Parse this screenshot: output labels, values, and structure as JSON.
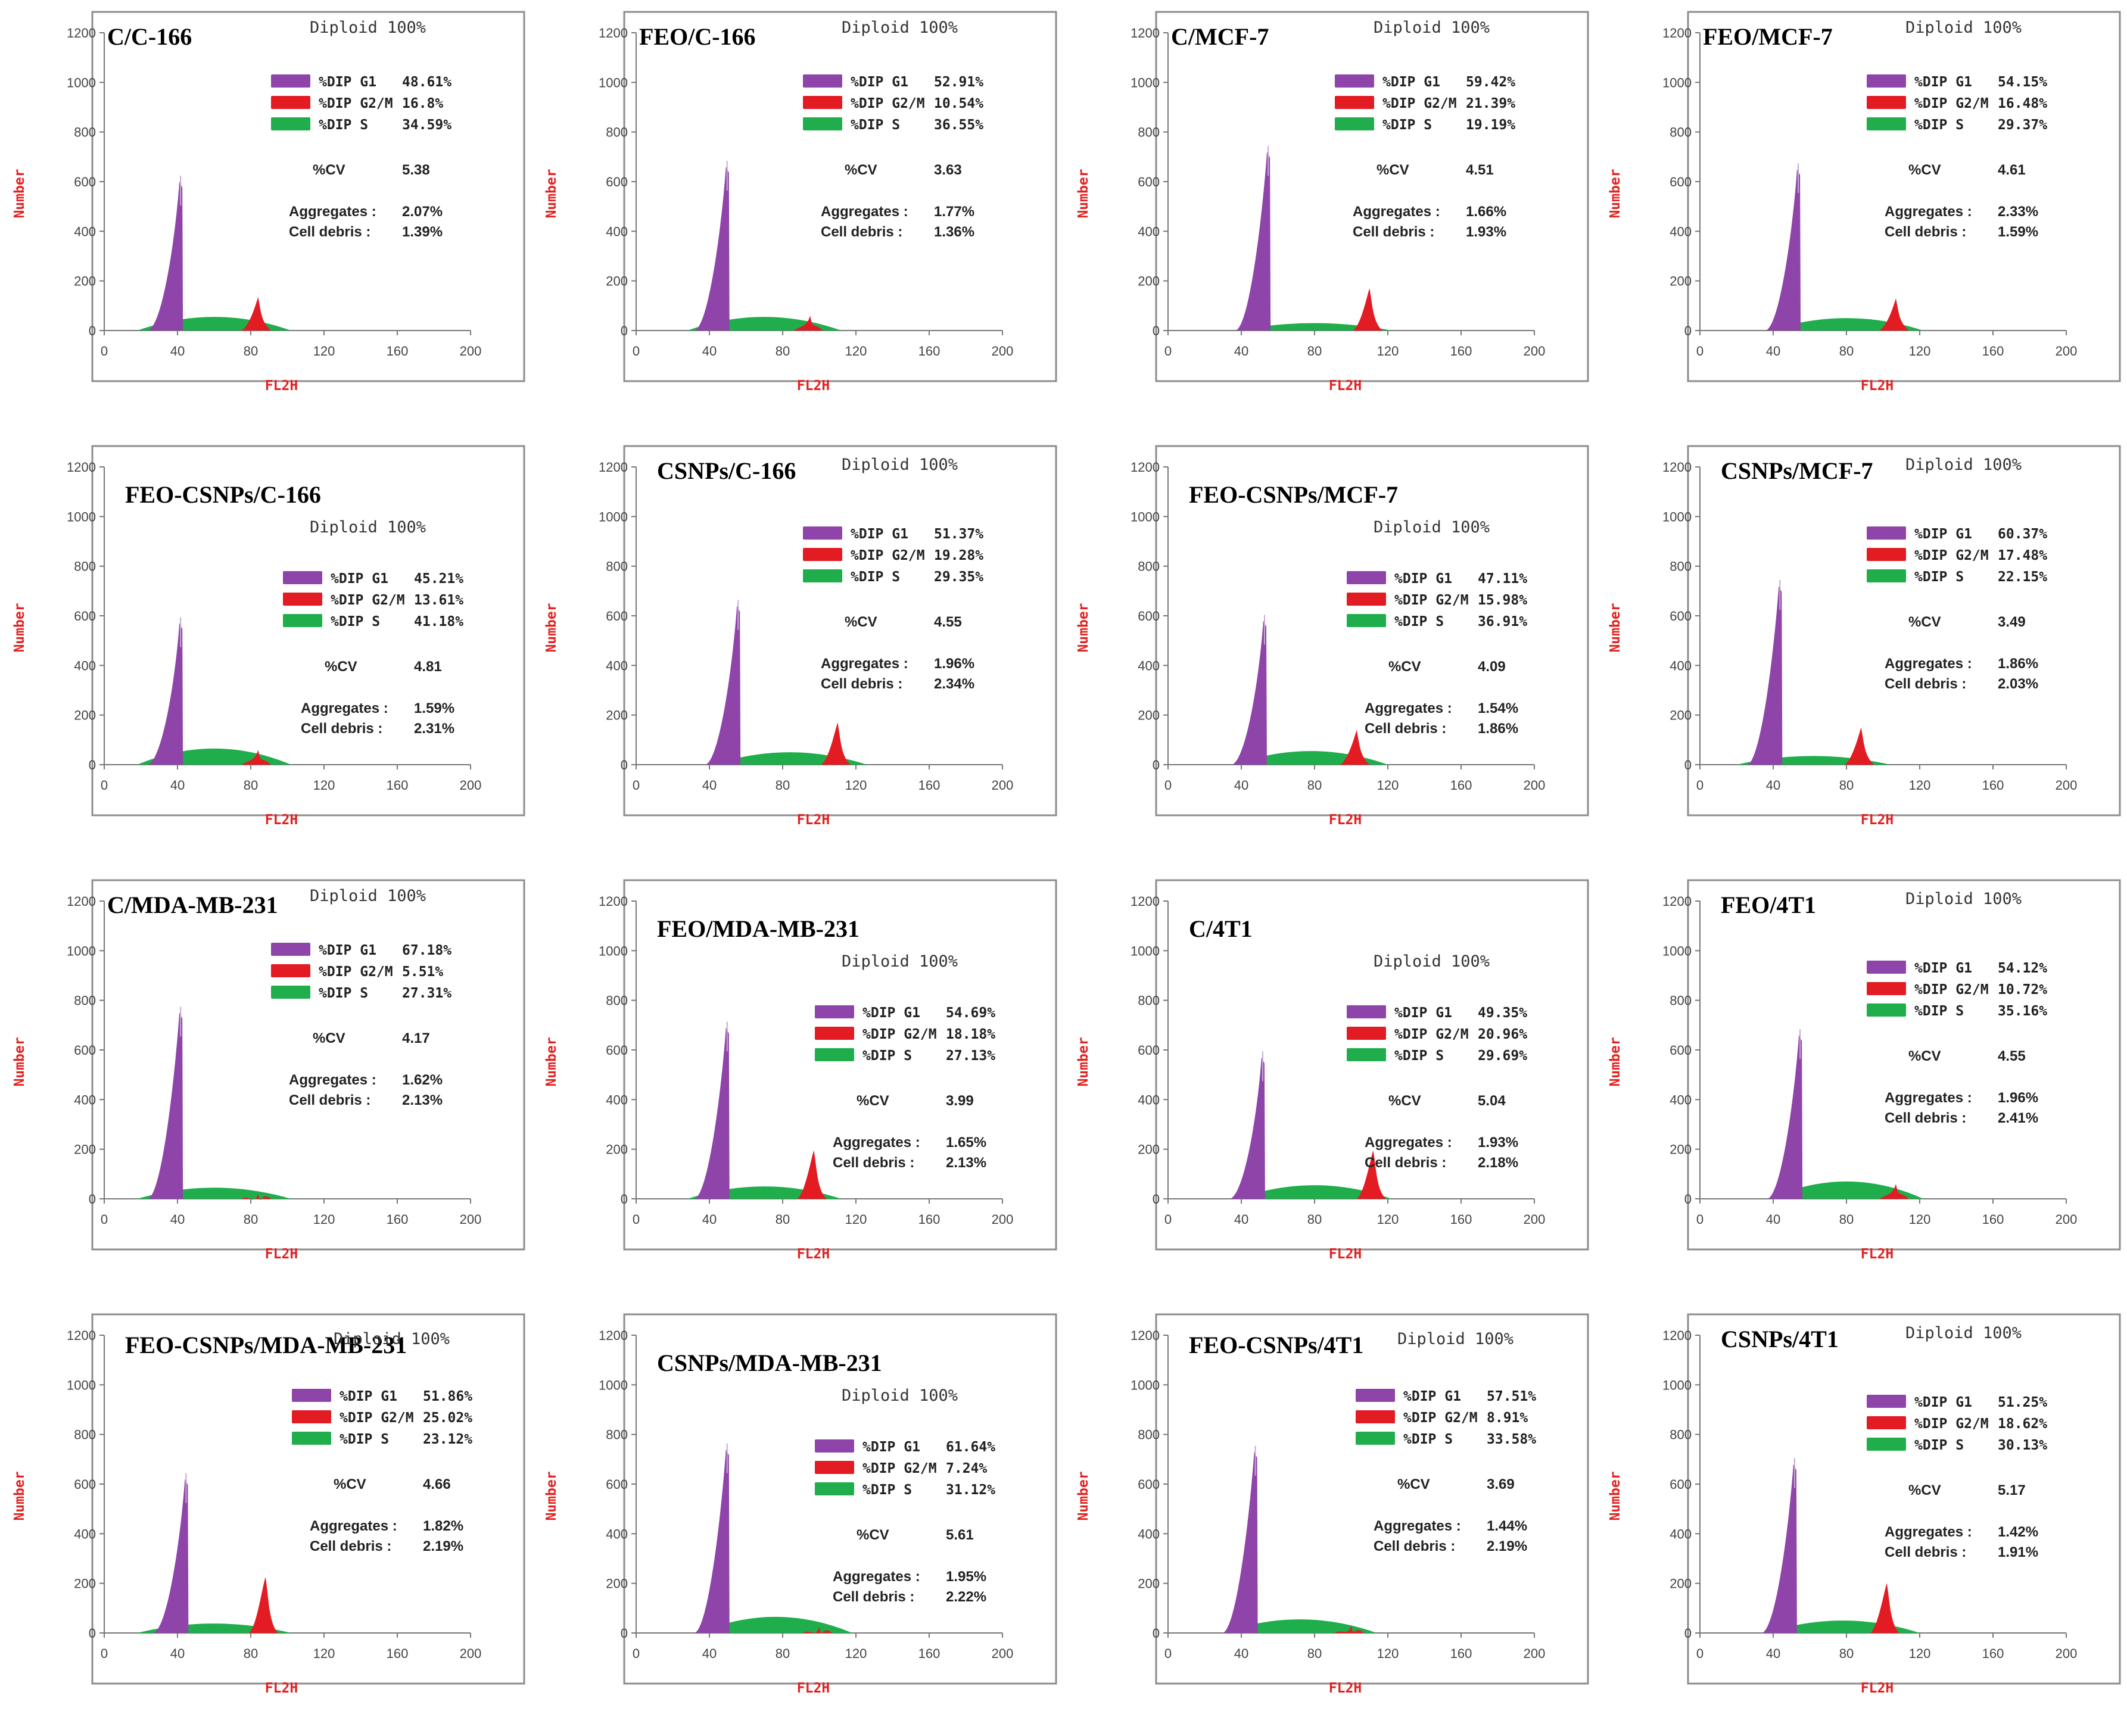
{
  "colors": {
    "g1": "#8e44a8",
    "g2m": "#e31b23",
    "s": "#1fae4b",
    "axis_label": "#e32222"
  },
  "chart_data": [
    {
      "type": "histogram",
      "title": "C/C-166",
      "diploid": "Diploid 100%",
      "xlabel": "FL2H",
      "ylabel": "Number",
      "xlim": [
        0,
        200
      ],
      "ylim": [
        0,
        1200
      ],
      "xticks": [
        "0",
        "40",
        "80",
        "120",
        "160",
        "200"
      ],
      "yticks": [
        "0",
        "200",
        "400",
        "600",
        "800",
        "1000",
        "1200"
      ],
      "legend": [
        {
          "label": "%DIP G1",
          "value": "48.61%"
        },
        {
          "label": "%DIP G2/M",
          "value": "16.8%"
        },
        {
          "label": "%DIP S",
          "value": "34.59%"
        }
      ],
      "cv_label": "%CV",
      "cv": "5.38",
      "aggregates_label": "Aggregates :",
      "aggregates": "2.07%",
      "debris_label": "Cell debris  :",
      "debris": "1.39%",
      "peaks": {
        "g1_pos": 42,
        "g1_height": 600,
        "g2_pos": 84,
        "g2_height": 135,
        "s_center": 60,
        "s_height": 55
      }
    },
    {
      "type": "histogram",
      "title": "FEO/C-166",
      "diploid": "Diploid 100%",
      "xlabel": "FL2H",
      "ylabel": "Number",
      "xlim": [
        0,
        200
      ],
      "ylim": [
        0,
        1200
      ],
      "xticks": [
        "0",
        "40",
        "80",
        "120",
        "160",
        "200"
      ],
      "yticks": [
        "0",
        "200",
        "400",
        "600",
        "800",
        "1000",
        "1200"
      ],
      "legend": [
        {
          "label": "%DIP G1",
          "value": "52.91%"
        },
        {
          "label": "%DIP G2/M",
          "value": "10.54%"
        },
        {
          "label": "%DIP S",
          "value": "36.55%"
        }
      ],
      "cv_label": "%CV",
      "cv": "3.63",
      "aggregates_label": "Aggregates :",
      "aggregates": "1.77%",
      "debris_label": "Cell debris  :",
      "debris": "1.36%",
      "peaks": {
        "g1_pos": 50,
        "g1_height": 660,
        "g2_pos": 95,
        "g2_height": 60,
        "s_center": 70,
        "s_height": 55
      }
    },
    {
      "type": "histogram",
      "title": "C/MCF-7",
      "diploid": "Diploid 100%",
      "xlabel": "FL2H",
      "ylabel": "Number",
      "xlim": [
        0,
        200
      ],
      "ylim": [
        0,
        1200
      ],
      "xticks": [
        "0",
        "40",
        "80",
        "120",
        "160",
        "200"
      ],
      "yticks": [
        "0",
        "200",
        "400",
        "600",
        "800",
        "1000",
        "1200"
      ],
      "legend": [
        {
          "label": "%DIP G1",
          "value": "59.42%"
        },
        {
          "label": "%DIP G2/M",
          "value": "21.39%"
        },
        {
          "label": "%DIP S",
          "value": "19.19%"
        }
      ],
      "cv_label": "%CV",
      "cv": "4.51",
      "aggregates_label": "Aggregates :",
      "aggregates": "1.66%",
      "debris_label": "Cell debris  :",
      "debris": "1.93%",
      "peaks": {
        "g1_pos": 55,
        "g1_height": 720,
        "g2_pos": 110,
        "g2_height": 170,
        "s_center": 80,
        "s_height": 30
      }
    },
    {
      "type": "histogram",
      "title": "FEO/MCF-7",
      "diploid": "Diploid 100%",
      "xlabel": "FL2H",
      "ylabel": "Number",
      "xlim": [
        0,
        200
      ],
      "ylim": [
        0,
        1200
      ],
      "xticks": [
        "0",
        "40",
        "80",
        "120",
        "160",
        "200"
      ],
      "yticks": [
        "0",
        "200",
        "400",
        "600",
        "800",
        "1000",
        "1200"
      ],
      "legend": [
        {
          "label": "%DIP G1",
          "value": "54.15%"
        },
        {
          "label": "%DIP G2/M",
          "value": "16.48%"
        },
        {
          "label": "%DIP S",
          "value": "29.37%"
        }
      ],
      "cv_label": "%CV",
      "cv": "4.61",
      "aggregates_label": "Aggregates :",
      "aggregates": "2.33%",
      "debris_label": "Cell debris  :",
      "debris": "1.59%",
      "peaks": {
        "g1_pos": 54,
        "g1_height": 650,
        "g2_pos": 107,
        "g2_height": 130,
        "s_center": 80,
        "s_height": 50
      }
    },
    {
      "type": "histogram",
      "title": "FEO-CSNPs/C-166",
      "diploid": "Diploid 100%",
      "xlabel": "FL2H",
      "ylabel": "Number",
      "xlim": [
        0,
        200
      ],
      "ylim": [
        0,
        1200
      ],
      "xticks": [
        "0",
        "40",
        "80",
        "120",
        "160",
        "200"
      ],
      "yticks": [
        "0",
        "200",
        "400",
        "600",
        "800",
        "1000",
        "1200"
      ],
      "legend": [
        {
          "label": "%DIP G1",
          "value": "45.21%"
        },
        {
          "label": "%DIP G2/M",
          "value": "13.61%"
        },
        {
          "label": "%DIP S",
          "value": "41.18%"
        }
      ],
      "cv_label": "%CV",
      "cv": "4.81",
      "aggregates_label": "Aggregates :",
      "aggregates": "1.59%",
      "debris_label": "Cell debris  :",
      "debris": "2.31%",
      "peaks": {
        "g1_pos": 42,
        "g1_height": 570,
        "g2_pos": 84,
        "g2_height": 60,
        "s_center": 60,
        "s_height": 65
      }
    },
    {
      "type": "histogram",
      "title": "CSNPs/C-166",
      "diploid": "Diploid 100%",
      "xlabel": "FL2H",
      "ylabel": "Number",
      "xlim": [
        0,
        200
      ],
      "ylim": [
        0,
        1200
      ],
      "xticks": [
        "0",
        "40",
        "80",
        "120",
        "160",
        "200"
      ],
      "yticks": [
        "0",
        "200",
        "400",
        "600",
        "800",
        "1000",
        "1200"
      ],
      "legend": [
        {
          "label": "%DIP G1",
          "value": "51.37%"
        },
        {
          "label": "%DIP G2/M",
          "value": "19.28%"
        },
        {
          "label": "%DIP S",
          "value": "29.35%"
        }
      ],
      "cv_label": "%CV",
      "cv": "4.55",
      "aggregates_label": "Aggregates :",
      "aggregates": "1.96%",
      "debris_label": "Cell debris  :",
      "debris": "2.34%",
      "peaks": {
        "g1_pos": 56,
        "g1_height": 640,
        "g2_pos": 110,
        "g2_height": 170,
        "s_center": 84,
        "s_height": 50
      }
    },
    {
      "type": "histogram",
      "title": "FEO-CSNPs/MCF-7",
      "diploid": "Diploid 100%",
      "xlabel": "FL2H",
      "ylabel": "Number",
      "xlim": [
        0,
        200
      ],
      "ylim": [
        0,
        1200
      ],
      "xticks": [
        "0",
        "40",
        "80",
        "120",
        "160",
        "200"
      ],
      "yticks": [
        "0",
        "200",
        "400",
        "600",
        "800",
        "1000",
        "1200"
      ],
      "legend": [
        {
          "label": "%DIP G1",
          "value": "47.11%"
        },
        {
          "label": "%DIP G2/M",
          "value": "15.98%"
        },
        {
          "label": "%DIP S",
          "value": "36.91%"
        }
      ],
      "cv_label": "%CV",
      "cv": "4.09",
      "aggregates_label": "Aggregates :",
      "aggregates": "1.54%",
      "debris_label": "Cell debris  :",
      "debris": "1.86%",
      "peaks": {
        "g1_pos": 53,
        "g1_height": 580,
        "g2_pos": 103,
        "g2_height": 140,
        "s_center": 78,
        "s_height": 55
      }
    },
    {
      "type": "histogram",
      "title": "CSNPs/MCF-7",
      "diploid": "Diploid 100%",
      "xlabel": "FL2H",
      "ylabel": "Number",
      "xlim": [
        0,
        200
      ],
      "ylim": [
        0,
        1200
      ],
      "xticks": [
        "0",
        "40",
        "80",
        "120",
        "160",
        "200"
      ],
      "yticks": [
        "0",
        "200",
        "400",
        "600",
        "800",
        "1000",
        "1200"
      ],
      "legend": [
        {
          "label": "%DIP G1",
          "value": "60.37%"
        },
        {
          "label": "%DIP G2/M",
          "value": "17.48%"
        },
        {
          "label": "%DIP S",
          "value": "22.15%"
        }
      ],
      "cv_label": "%CV",
      "cv": "3.49",
      "aggregates_label": "Aggregates :",
      "aggregates": "1.86%",
      "debris_label": "Cell debris  :",
      "debris": "2.03%",
      "peaks": {
        "g1_pos": 44,
        "g1_height": 720,
        "g2_pos": 88,
        "g2_height": 150,
        "s_center": 62,
        "s_height": 35
      }
    },
    {
      "type": "histogram",
      "title": "C/MDA-MB-231",
      "diploid": "Diploid 100%",
      "xlabel": "FL2H",
      "ylabel": "Number",
      "xlim": [
        0,
        200
      ],
      "ylim": [
        0,
        1200
      ],
      "xticks": [
        "0",
        "40",
        "80",
        "120",
        "160",
        "200"
      ],
      "yticks": [
        "0",
        "200",
        "400",
        "600",
        "800",
        "1000",
        "1200"
      ],
      "legend": [
        {
          "label": "%DIP G1",
          "value": "67.18%"
        },
        {
          "label": "%DIP G2/M",
          "value": "5.51%"
        },
        {
          "label": "%DIP S",
          "value": "27.31%"
        }
      ],
      "cv_label": "%CV",
      "cv": "4.17",
      "aggregates_label": "Aggregates :",
      "aggregates": "1.62%",
      "debris_label": "Cell debris  :",
      "debris": "2.13%",
      "peaks": {
        "g1_pos": 42,
        "g1_height": 750,
        "g2_pos": 84,
        "g2_height": 20,
        "s_center": 60,
        "s_height": 45
      }
    },
    {
      "type": "histogram",
      "title": "FEO/MDA-MB-231",
      "diploid": "Diploid 100%",
      "xlabel": "FL2H",
      "ylabel": "Number",
      "xlim": [
        0,
        200
      ],
      "ylim": [
        0,
        1200
      ],
      "xticks": [
        "0",
        "40",
        "80",
        "120",
        "160",
        "200"
      ],
      "yticks": [
        "0",
        "200",
        "400",
        "600",
        "800",
        "1000",
        "1200"
      ],
      "legend": [
        {
          "label": "%DIP G1",
          "value": "54.69%"
        },
        {
          "label": "%DIP G2/M",
          "value": "18.18%"
        },
        {
          "label": "%DIP S",
          "value": "27.13%"
        }
      ],
      "cv_label": "%CV",
      "cv": "3.99",
      "aggregates_label": "Aggregates :",
      "aggregates": "1.65%",
      "debris_label": "Cell debris  :",
      "debris": "2.13%",
      "peaks": {
        "g1_pos": 50,
        "g1_height": 690,
        "g2_pos": 97,
        "g2_height": 195,
        "s_center": 70,
        "s_height": 50
      }
    },
    {
      "type": "histogram",
      "title": "C/4T1",
      "diploid": "Diploid 100%",
      "xlabel": "FL2H",
      "ylabel": "Number",
      "xlim": [
        0,
        200
      ],
      "ylim": [
        0,
        1200
      ],
      "xticks": [
        "0",
        "40",
        "80",
        "120",
        "160",
        "200"
      ],
      "yticks": [
        "0",
        "200",
        "400",
        "600",
        "800",
        "1000",
        "1200"
      ],
      "legend": [
        {
          "label": "%DIP G1",
          "value": "49.35%"
        },
        {
          "label": "%DIP G2/M",
          "value": "20.96%"
        },
        {
          "label": "%DIP S",
          "value": "29.69%"
        }
      ],
      "cv_label": "%CV",
      "cv": "5.04",
      "aggregates_label": "Aggregates :",
      "aggregates": "1.93%",
      "debris_label": "Cell debris  :",
      "debris": "2.18%",
      "peaks": {
        "g1_pos": 52,
        "g1_height": 570,
        "g2_pos": 112,
        "g2_height": 195,
        "s_center": 80,
        "s_height": 55
      }
    },
    {
      "type": "histogram",
      "title": "FEO/4T1",
      "diploid": "Diploid 100%",
      "xlabel": "FL2H",
      "ylabel": "Number",
      "xlim": [
        0,
        200
      ],
      "ylim": [
        0,
        1200
      ],
      "xticks": [
        "0",
        "40",
        "80",
        "120",
        "160",
        "200"
      ],
      "yticks": [
        "0",
        "200",
        "400",
        "600",
        "800",
        "1000",
        "1200"
      ],
      "legend": [
        {
          "label": "%DIP G1",
          "value": "54.12%"
        },
        {
          "label": "%DIP G2/M",
          "value": "10.72%"
        },
        {
          "label": "%DIP S",
          "value": "35.16%"
        }
      ],
      "cv_label": "%CV",
      "cv": "4.55",
      "aggregates_label": "Aggregates :",
      "aggregates": "1.96%",
      "debris_label": "Cell debris  :",
      "debris": "2.41%",
      "peaks": {
        "g1_pos": 55,
        "g1_height": 660,
        "g2_pos": 107,
        "g2_height": 60,
        "s_center": 80,
        "s_height": 70
      }
    },
    {
      "type": "histogram",
      "title": "FEO-CSNPs/MDA-MB-231",
      "diploid": "Diploid 100%",
      "xlabel": "FL2H",
      "ylabel": "Number",
      "xlim": [
        0,
        200
      ],
      "ylim": [
        0,
        1200
      ],
      "xticks": [
        "0",
        "40",
        "80",
        "120",
        "160",
        "200"
      ],
      "yticks": [
        "0",
        "200",
        "400",
        "600",
        "800",
        "1000",
        "1200"
      ],
      "legend": [
        {
          "label": "%DIP G1",
          "value": "51.86%"
        },
        {
          "label": "%DIP G2/M",
          "value": "25.02%"
        },
        {
          "label": "%DIP S",
          "value": "23.12%"
        }
      ],
      "cv_label": "%CV",
      "cv": "4.66",
      "aggregates_label": "Aggregates :",
      "aggregates": "1.82%",
      "debris_label": "Cell debris  :",
      "debris": "2.19%",
      "peaks": {
        "g1_pos": 45,
        "g1_height": 620,
        "g2_pos": 88,
        "g2_height": 225,
        "s_center": 60,
        "s_height": 38
      }
    },
    {
      "type": "histogram",
      "title": "CSNPs/MDA-MB-231",
      "diploid": "Diploid 100%",
      "xlabel": "FL2H",
      "ylabel": "Number",
      "xlim": [
        0,
        200
      ],
      "ylim": [
        0,
        1200
      ],
      "xticks": [
        "0",
        "40",
        "80",
        "120",
        "160",
        "200"
      ],
      "yticks": [
        "0",
        "200",
        "400",
        "600",
        "800",
        "1000",
        "1200"
      ],
      "legend": [
        {
          "label": "%DIP G1",
          "value": "61.64%"
        },
        {
          "label": "%DIP G2/M",
          "value": "7.24%"
        },
        {
          "label": "%DIP S",
          "value": "31.12%"
        }
      ],
      "cv_label": "%CV",
      "cv": "5.61",
      "aggregates_label": "Aggregates :",
      "aggregates": "1.95%",
      "debris_label": "Cell debris  :",
      "debris": "2.22%",
      "peaks": {
        "g1_pos": 50,
        "g1_height": 740,
        "g2_pos": 100,
        "g2_height": 25,
        "s_center": 76,
        "s_height": 65
      }
    },
    {
      "type": "histogram",
      "title": "FEO-CSNPs/4T1",
      "diploid": "Diploid 100%",
      "xlabel": "FL2H",
      "ylabel": "Number",
      "xlim": [
        0,
        200
      ],
      "ylim": [
        0,
        1200
      ],
      "xticks": [
        "0",
        "40",
        "80",
        "120",
        "160",
        "200"
      ],
      "yticks": [
        "0",
        "200",
        "400",
        "600",
        "800",
        "1000",
        "1200"
      ],
      "legend": [
        {
          "label": "%DIP G1",
          "value": "57.51%"
        },
        {
          "label": "%DIP G2/M",
          "value": "8.91%"
        },
        {
          "label": "%DIP S",
          "value": "33.58%"
        }
      ],
      "cv_label": "%CV",
      "cv": "3.69",
      "aggregates_label": "Aggregates :",
      "aggregates": "1.44%",
      "debris_label": "Cell debris  :",
      "debris": "2.19%",
      "peaks": {
        "g1_pos": 48,
        "g1_height": 730,
        "g2_pos": 100,
        "g2_height": 30,
        "s_center": 72,
        "s_height": 55
      }
    },
    {
      "type": "histogram",
      "title": "CSNPs/4T1",
      "diploid": "Diploid 100%",
      "xlabel": "FL2H",
      "ylabel": "Number",
      "xlim": [
        0,
        200
      ],
      "ylim": [
        0,
        1200
      ],
      "xticks": [
        "0",
        "40",
        "80",
        "120",
        "160",
        "200"
      ],
      "yticks": [
        "0",
        "200",
        "400",
        "600",
        "800",
        "1000",
        "1200"
      ],
      "legend": [
        {
          "label": "%DIP G1",
          "value": "51.25%"
        },
        {
          "label": "%DIP G2/M",
          "value": "18.62%"
        },
        {
          "label": "%DIP S",
          "value": "30.13%"
        }
      ],
      "cv_label": "%CV",
      "cv": "5.17",
      "aggregates_label": "Aggregates :",
      "aggregates": "1.42%",
      "debris_label": "Cell debris  :",
      "debris": "1.91%",
      "peaks": {
        "g1_pos": 52,
        "g1_height": 680,
        "g2_pos": 102,
        "g2_height": 200,
        "s_center": 78,
        "s_height": 50
      }
    }
  ]
}
